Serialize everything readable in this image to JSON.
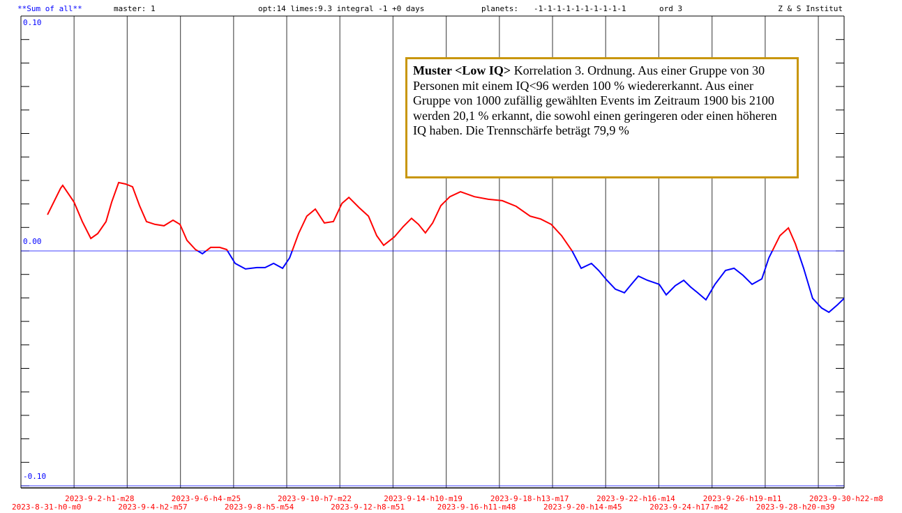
{
  "chart_data": {
    "type": "line",
    "header": {
      "name": "**Sum of all**",
      "master": "master: 1",
      "opt": "opt:14 limes:9.3  integral -1 +0 days",
      "planets_label": "planets:",
      "planets": "-1-1-1-1-1-1-1-1-1-1",
      "ord": "ord 3",
      "institute": "Z & S Institut"
    },
    "annotation": {
      "title": "Muster <Low IQ>",
      "text": "Korrelation 3. Ordnung. Aus einer Gruppe von 30 Personen mit einem IQ<96  werden 100 % wiedererkannt. Aus einer Gruppe von 1000 zufällig gewählten Events im Zeitraum 1900 bis 2100 werden 20,1 % erkannt, die sowohl einen geringeren oder einen höheren IQ haben. Die Trennschärfe beträgt 79,9 %"
    },
    "color_positive": "#ff0000",
    "color_negative": "#0000ff",
    "xlim": [
      0,
      31.93
    ],
    "ylim": [
      -0.1,
      0.1
    ],
    "yticks": [
      {
        "value": 0.1,
        "label": "0.10"
      },
      {
        "value": 0,
        "label": "0.00"
      },
      {
        "value": -0.1,
        "label": "-0.10"
      }
    ],
    "yminorticks": [
      0.1,
      0.09,
      0.08,
      0.07,
      0.06,
      0.05,
      0.04,
      0.03,
      0.02,
      0.01,
      0,
      -0.01,
      -0.02,
      -0.03,
      -0.04,
      -0.05,
      -0.06,
      -0.07,
      -0.08,
      -0.09,
      -0.1
    ],
    "xticks": [
      {
        "value": 0,
        "label": "2023-8-31-h0-m0"
      },
      {
        "value": 2.06,
        "label": "2023-9-2-h1-m28"
      },
      {
        "value": 4.12,
        "label": "2023-9-4-h2-m57"
      },
      {
        "value": 6.19,
        "label": "2023-9-6-h4-m25"
      },
      {
        "value": 8.25,
        "label": "2023-9-8-h5-m54"
      },
      {
        "value": 10.31,
        "label": "2023-9-10-h7-m22"
      },
      {
        "value": 12.37,
        "label": "2023-9-12-h8-m51"
      },
      {
        "value": 14.43,
        "label": "2023-9-14-h10-m19"
      },
      {
        "value": 16.5,
        "label": "2023-9-16-h11-m48"
      },
      {
        "value": 18.56,
        "label": "2023-9-18-h13-m17"
      },
      {
        "value": 20.62,
        "label": "2023-9-20-h14-m45"
      },
      {
        "value": 22.68,
        "label": "2023-9-22-h16-m14"
      },
      {
        "value": 24.74,
        "label": "2023-9-24-h17-m42"
      },
      {
        "value": 26.81,
        "label": "2023-9-26-h19-m11"
      },
      {
        "value": 28.87,
        "label": "2023-9-28-h20-m39"
      },
      {
        "value": 30.93,
        "label": "2023-9-30-h22-m8"
      }
    ],
    "x": [
      1.03,
      1.54,
      1.62,
      2.06,
      2.38,
      2.71,
      2.98,
      3.3,
      3.52,
      3.79,
      4.06,
      4.33,
      4.6,
      4.87,
      5.2,
      5.55,
      5.9,
      6.17,
      6.44,
      6.77,
      7.04,
      7.36,
      7.71,
      7.98,
      8.31,
      8.71,
      9.15,
      9.47,
      9.8,
      10.15,
      10.42,
      10.77,
      11.09,
      11.42,
      11.77,
      12.12,
      12.45,
      12.72,
      13.12,
      13.48,
      13.8,
      14.07,
      14.48,
      14.83,
      15.15,
      15.42,
      15.69,
      15.97,
      16.29,
      16.64,
      17.05,
      17.59,
      18.13,
      18.67,
      19.21,
      19.75,
      20.16,
      20.57,
      20.97,
      21.38,
      21.73,
      22.13,
      22.41,
      22.73,
      23.06,
      23.41,
      23.68,
      23.95,
      24.3,
      24.76,
      25.03,
      25.38,
      25.71,
      25.98,
      26.25,
      26.57,
      26.92,
      27.33,
      27.66,
      28.01,
      28.36,
      28.74,
      29.01,
      29.44,
      29.77,
      30.04,
      30.36,
      30.71,
      31.06,
      31.34,
      31.66,
      31.93
    ],
    "values": [
      0.0154,
      0.0267,
      0.0279,
      0.0208,
      0.0125,
      0.0053,
      0.0074,
      0.0125,
      0.0208,
      0.0291,
      0.0285,
      0.0273,
      0.0193,
      0.0125,
      0.0113,
      0.0107,
      0.0131,
      0.0113,
      0.0045,
      0.0006,
      -0.0012,
      0.0015,
      0.0015,
      0.0006,
      -0.0053,
      -0.0077,
      -0.0071,
      -0.0071,
      -0.0053,
      -0.0074,
      -0.003,
      0.0074,
      0.0148,
      0.0178,
      0.0119,
      0.0125,
      0.0202,
      0.0228,
      0.0184,
      0.0148,
      0.0065,
      0.0024,
      0.0059,
      0.0104,
      0.0139,
      0.0113,
      0.0077,
      0.0119,
      0.0193,
      0.0231,
      0.0252,
      0.0231,
      0.022,
      0.0214,
      0.019,
      0.0148,
      0.0136,
      0.0113,
      0.0065,
      0,
      -0.0074,
      -0.0053,
      -0.0083,
      -0.0125,
      -0.0163,
      -0.0178,
      -0.0142,
      -0.0107,
      -0.0125,
      -0.0142,
      -0.0187,
      -0.0148,
      -0.0125,
      -0.0154,
      -0.0178,
      -0.0208,
      -0.0142,
      -0.0083,
      -0.0074,
      -0.0104,
      -0.0142,
      -0.0119,
      -0.003,
      0.0065,
      0.0098,
      0.003,
      -0.0074,
      -0.0202,
      -0.0243,
      -0.0261,
      -0.0231,
      -0.0202
    ]
  }
}
